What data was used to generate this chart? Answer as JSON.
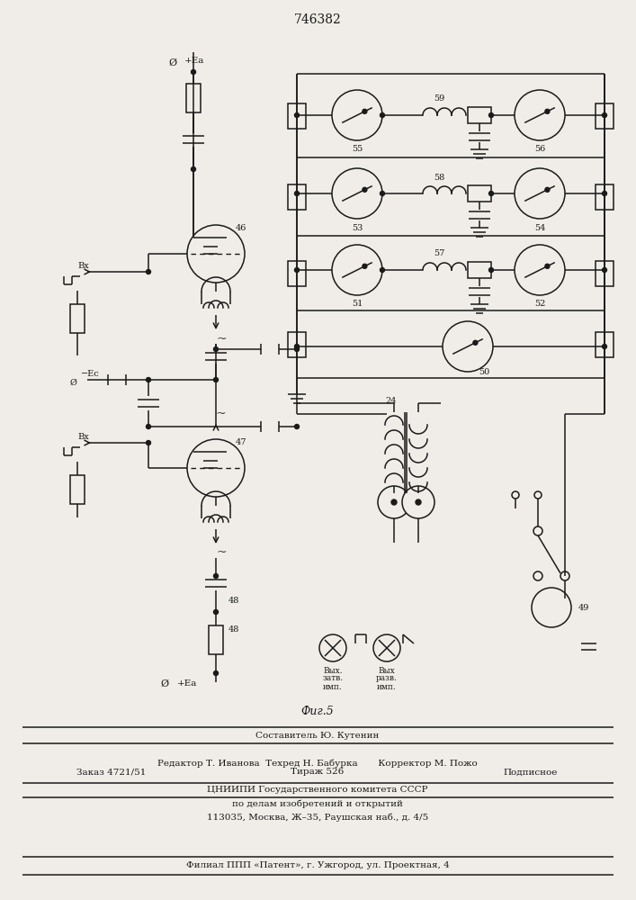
{
  "title": "746382",
  "fig_label": "Фиг.5",
  "bg_color": "#f0ede8",
  "line_color": "#1a1a1a",
  "text_color": "#1a1a1a",
  "footer_line1": "Составитель Ю. Кутенин",
  "footer_line2": "Редактор Т. Иванова  Техред Н. Бабурка       Корректор М. Пожо",
  "footer_line3a": "Заказ 4721/51",
  "footer_line3b": "Тираж 526",
  "footer_line3c": "Подписное",
  "footer_line4": "ЦНИИПИ Государственного комитета СССР",
  "footer_line5": "по делам изобретений и открытий",
  "footer_line6": "113035, Москва, Ж–35, Раушская наб., д. 4/5",
  "footer_line7": "Филиал ППП «Патент», г. Ужгород, ул. Проектная, 4"
}
